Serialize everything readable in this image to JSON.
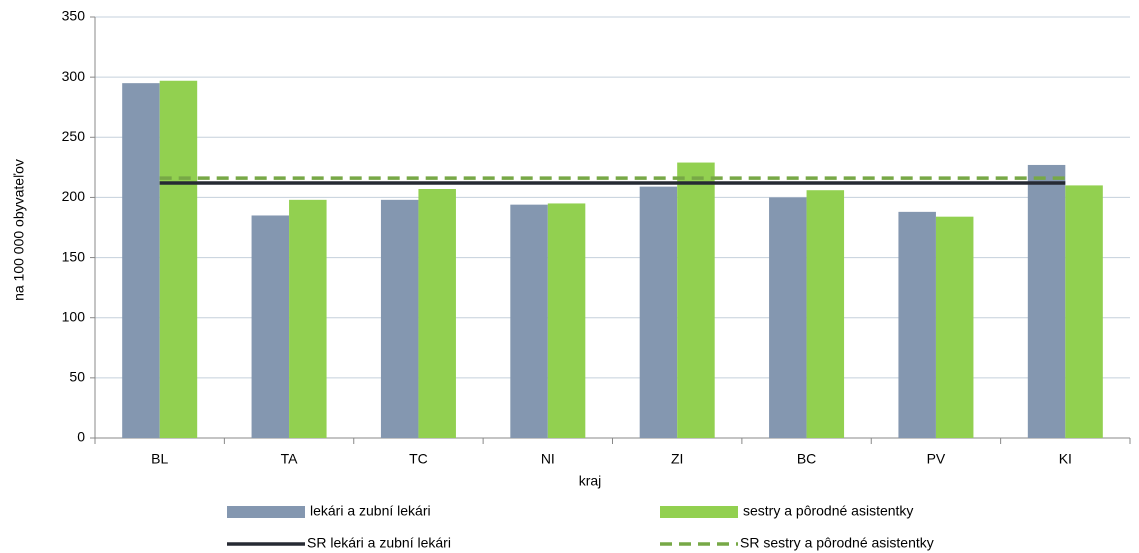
{
  "chart_data": {
    "type": "bar",
    "categories": [
      "BL",
      "TA",
      "TC",
      "NI",
      "ZI",
      "BC",
      "PV",
      "KI"
    ],
    "series": [
      {
        "name": "lekári a zubní lekári",
        "type": "bar",
        "color": "#8497b0",
        "values": [
          295,
          185,
          198,
          194,
          209,
          200,
          188,
          227
        ]
      },
      {
        "name": "sestry a pôrodné asistentky",
        "type": "bar",
        "color": "#92d050",
        "values": [
          297,
          198,
          207,
          195,
          229,
          206,
          184,
          210
        ]
      },
      {
        "name": "SR lekári a zubní lekári",
        "type": "line",
        "color": "#262a33",
        "dashed": false,
        "values": [
          212,
          212,
          212,
          212,
          212,
          212,
          212,
          212
        ]
      },
      {
        "name": "SR sestry a pôrodné asistentky",
        "type": "line",
        "color": "#77a846",
        "dashed": true,
        "values": [
          216,
          216,
          216,
          216,
          216,
          216,
          216,
          216
        ]
      }
    ],
    "xlabel": "kraj",
    "ylabel": "na 100 000 obyvateľov",
    "ylim": [
      0,
      350
    ],
    "yticks": [
      0,
      50,
      100,
      150,
      200,
      250,
      300,
      350
    ],
    "grid": true,
    "legend": "bottom"
  }
}
